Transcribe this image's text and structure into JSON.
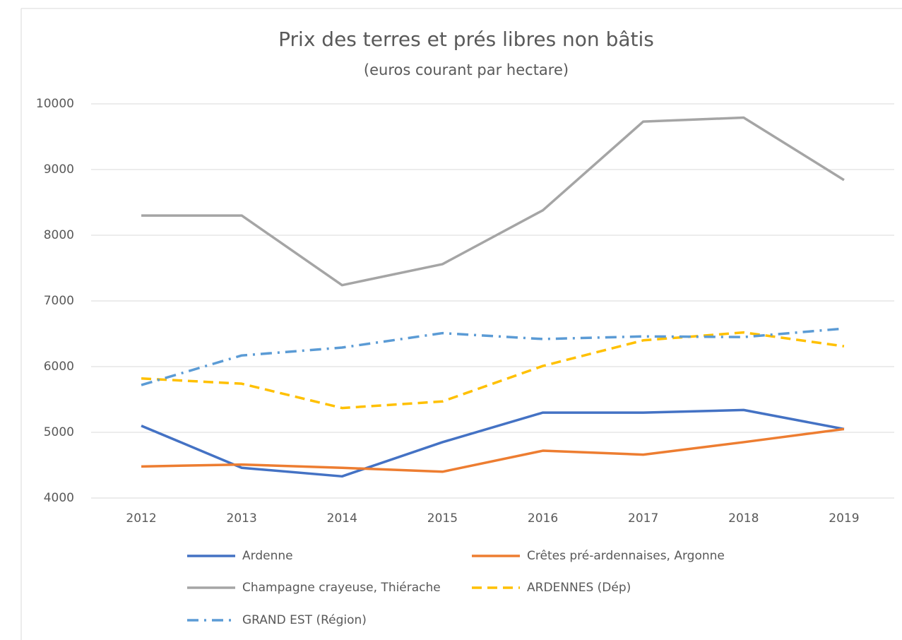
{
  "chart_data": {
    "type": "line",
    "title": "Prix des terres et prés libres non bâtis",
    "subtitle": "(euros courant par hectare)",
    "categories": [
      "2012",
      "2013",
      "2014",
      "2015",
      "2016",
      "2017",
      "2018",
      "2019"
    ],
    "series": [
      {
        "name": "Ardenne",
        "color": "#4472c4",
        "dash": "solid",
        "values": [
          5100,
          4460,
          4330,
          4850,
          5300,
          5300,
          5340,
          5050
        ]
      },
      {
        "name": "Crêtes pré-ardennaises, Argonne",
        "color": "#ed7d31",
        "dash": "solid",
        "values": [
          4480,
          4510,
          4460,
          4400,
          4720,
          4660,
          4850,
          5050
        ]
      },
      {
        "name": "Champagne crayeuse, Thiérache",
        "color": "#a5a5a5",
        "dash": "solid",
        "values": [
          8300,
          8300,
          7240,
          7560,
          8380,
          9730,
          9790,
          8840
        ]
      },
      {
        "name": "ARDENNES (Dép)",
        "color": "#ffc000",
        "dash": "dashed",
        "values": [
          5820,
          5740,
          5370,
          5470,
          6010,
          6400,
          6520,
          6310
        ]
      },
      {
        "name": "GRAND EST (Région)",
        "color": "#5b9bd5",
        "dash": "dashdot",
        "values": [
          5720,
          6170,
          6290,
          6510,
          6420,
          6460,
          6450,
          6580
        ]
      }
    ],
    "ylim": [
      4000,
      10000
    ],
    "yticks": [
      4000,
      5000,
      6000,
      7000,
      8000,
      9000,
      10000
    ],
    "grid": true,
    "legend": "bottom"
  }
}
